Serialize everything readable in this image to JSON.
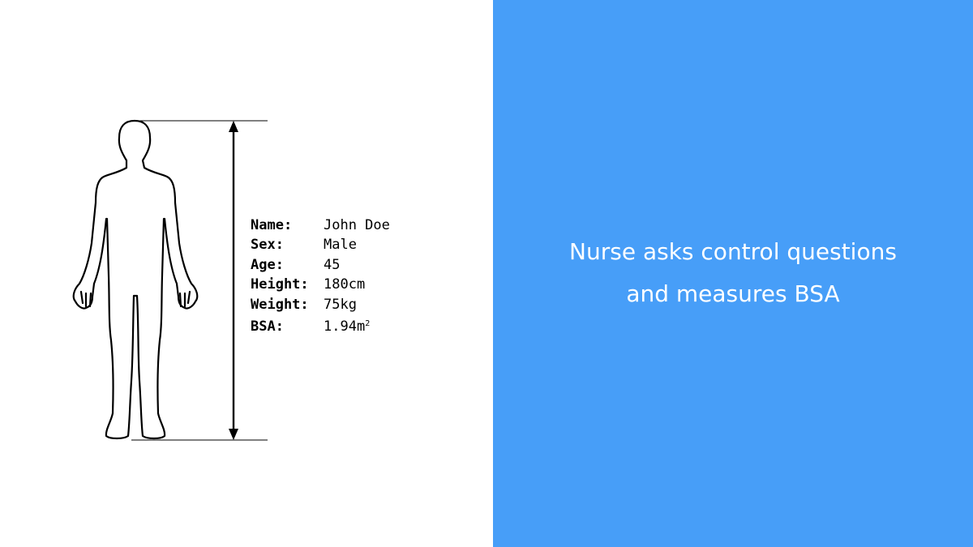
{
  "colors": {
    "accent": "#479ef8",
    "text_on_accent": "#ffffff",
    "ink": "#000000"
  },
  "caption": {
    "line1": "Nurse asks control questions",
    "line2": "and measures BSA"
  },
  "patient": {
    "fields": [
      {
        "label": "Name:",
        "value": "John Doe"
      },
      {
        "label": "Sex:",
        "value": "Male"
      },
      {
        "label": "Age:",
        "value": "45"
      },
      {
        "label": "Height:",
        "value": "180cm"
      },
      {
        "label": "Weight:",
        "value": "75kg"
      },
      {
        "label": "BSA:",
        "value": "1.94m",
        "unit_sup": "2"
      }
    ]
  },
  "figure": {
    "icon": "human-body-outline-icon",
    "measure_icon": "height-double-arrow-icon"
  }
}
